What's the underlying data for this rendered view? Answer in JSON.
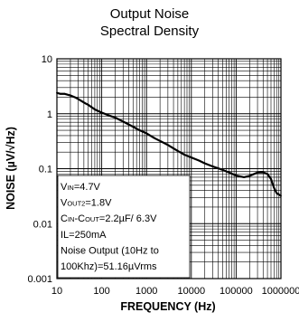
{
  "chart_data": {
    "type": "line",
    "title": [
      "Output Noise",
      "Spectral Density"
    ],
    "xlabel": "FREQUENCY (Hz)",
    "ylabel": "NOISE (µV/√Hz)",
    "xscale": "log",
    "yscale": "log",
    "xlim": [
      10,
      1000000
    ],
    "ylim": [
      0.001,
      10
    ],
    "xtick_labels": [
      "10",
      "100",
      "1000",
      "10000",
      "100000",
      "1000000"
    ],
    "ytick_labels": [
      "10",
      "1",
      "0.1",
      "0.01",
      "0.001"
    ],
    "grid": true,
    "series": [
      {
        "color": "#000000",
        "x": [
          10,
          12,
          15,
          20,
          25,
          30,
          40,
          50,
          70,
          100,
          150,
          200,
          300,
          500,
          700,
          1000,
          1500,
          2000,
          3000,
          5000,
          7000,
          10000,
          15000,
          20000,
          30000,
          50000,
          70000,
          100000,
          150000,
          200000,
          300000,
          400000,
          500000,
          600000,
          700000,
          800000,
          1000000
        ],
        "y": [
          2.4,
          2.3,
          2.3,
          2.15,
          2.0,
          1.85,
          1.6,
          1.45,
          1.2,
          1.05,
          0.92,
          0.85,
          0.72,
          0.58,
          0.5,
          0.44,
          0.36,
          0.32,
          0.27,
          0.21,
          0.18,
          0.16,
          0.14,
          0.125,
          0.11,
          0.095,
          0.085,
          0.075,
          0.07,
          0.074,
          0.085,
          0.086,
          0.08,
          0.065,
          0.045,
          0.036,
          0.032
        ]
      }
    ],
    "annotation_lines": [
      "V_IN=4.7V",
      "V_OUT2=1.8V",
      "C_IN-C_OUT=2.2µF/ 6.3V",
      "IL=250mA",
      "Noise Output (10Hz to",
      "100Khz)=51.16µVrms"
    ],
    "annotation_parts": [
      [
        [
          "V",
          ""
        ],
        [
          "IN",
          "sub"
        ],
        [
          "=4.7V",
          ""
        ]
      ],
      [
        [
          "V",
          ""
        ],
        [
          "OUT2",
          "sub"
        ],
        [
          "=1.8V",
          ""
        ]
      ],
      [
        [
          "C",
          ""
        ],
        [
          "IN",
          "sub"
        ],
        [
          "-C",
          ""
        ],
        [
          "OUT",
          "sub"
        ],
        [
          "=2.2µF/ 6.3V",
          ""
        ]
      ],
      [
        [
          "IL=250mA",
          ""
        ]
      ],
      [
        [
          "Noise Output (10Hz to",
          ""
        ]
      ],
      [
        [
          "100Khz)=51.16µVrms",
          ""
        ]
      ]
    ]
  }
}
